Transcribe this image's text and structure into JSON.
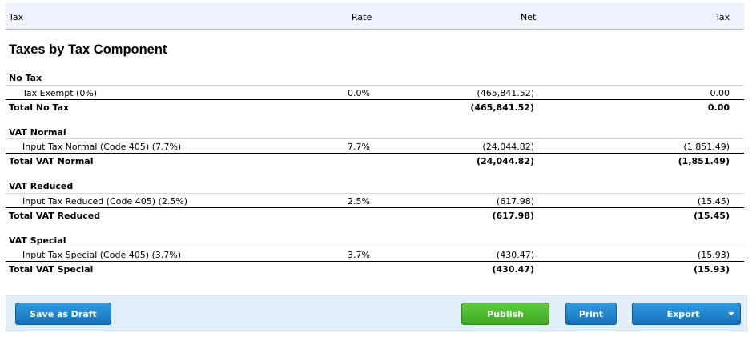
{
  "header": {
    "tax": "Tax",
    "rate": "Rate",
    "net": "Net",
    "tax_amount": "Tax"
  },
  "section_title": "Taxes by Tax Component",
  "groups": [
    {
      "title": "No Tax",
      "item": {
        "name": "Tax Exempt (0%)",
        "rate": "0.0%",
        "net": "(465,841.52)",
        "tax": "0.00"
      },
      "total": {
        "name": "Total No Tax",
        "net": "(465,841.52)",
        "tax": "0.00"
      }
    },
    {
      "title": "VAT Normal",
      "item": {
        "name": "Input Tax Normal (Code 405) (7.7%)",
        "rate": "7.7%",
        "net": "(24,044.82)",
        "tax": "(1,851.49)"
      },
      "total": {
        "name": "Total VAT Normal",
        "net": "(24,044.82)",
        "tax": "(1,851.49)"
      }
    },
    {
      "title": "VAT Reduced",
      "item": {
        "name": "Input Tax Reduced (Code 405) (2.5%)",
        "rate": "2.5%",
        "net": "(617.98)",
        "tax": "(15.45)"
      },
      "total": {
        "name": "Total VAT Reduced",
        "net": "(617.98)",
        "tax": "(15.45)"
      }
    },
    {
      "title": "VAT Special",
      "item": {
        "name": "Input Tax Special (Code 405) (3.7%)",
        "rate": "3.7%",
        "net": "(430.47)",
        "tax": "(15.93)"
      },
      "total": {
        "name": "Total VAT Special",
        "net": "(430.47)",
        "tax": "(15.93)"
      }
    }
  ],
  "footer": {
    "save_draft": "Save as Draft",
    "publish": "Publish",
    "print": "Print",
    "export": "Export",
    "export_icon": "chevron-down-icon"
  },
  "colors": {
    "header_bg": "#eef2fb",
    "footer_bg": "#e3eefb",
    "button_blue": "#1c84cf",
    "button_green": "#4cbb2e"
  }
}
